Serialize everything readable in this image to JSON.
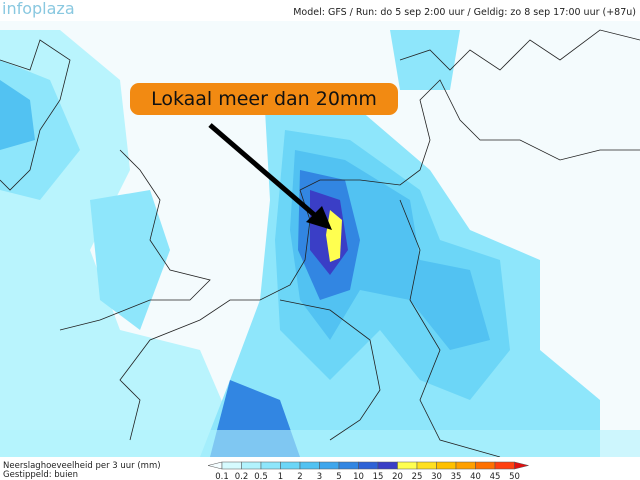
{
  "header": {
    "logo": "infoplaza",
    "info": "Model: GFS / Run: do 5 sep 2:00 uur / Geldig: zo 8 sep 17:00 uur (+87u)"
  },
  "callout": {
    "text": "Lokaal meer dan 20mm"
  },
  "legend": {
    "title": "Neerslaghoeveelheid per 3 uur (mm)",
    "subtitle": "Gestippeld: buien",
    "labels": [
      0.1,
      0.2,
      0.5,
      1,
      2,
      3,
      5,
      10,
      15,
      20,
      25,
      30,
      35,
      40,
      45,
      50
    ],
    "colors": [
      "#d6fbff",
      "#b2f3fd",
      "#8ee6fb",
      "#6cd6f7",
      "#52c2f2",
      "#3ea6ec",
      "#3286e2",
      "#2e62d6",
      "#3a3ec6",
      "#ffff50",
      "#ffe020",
      "#ffc000",
      "#ffa000",
      "#ff7000",
      "#ff4010"
    ]
  }
}
